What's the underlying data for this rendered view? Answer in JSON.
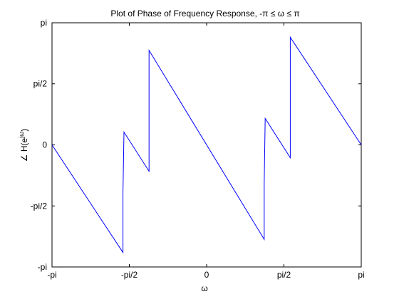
{
  "chart_data": {
    "type": "line",
    "title": "Plot of Phase of Frequency Response, -π ≤ ω ≤ π",
    "xlabel": "ω",
    "ylabel": "∠ H(e^jω)",
    "xlim": [
      -3.14159,
      3.14159
    ],
    "ylim": [
      -3.14159,
      3.14159
    ],
    "x_ticks": [
      {
        "value": -3.14159,
        "label": "-pi"
      },
      {
        "value": -1.5708,
        "label": "-pi/2"
      },
      {
        "value": 0,
        "label": "0"
      },
      {
        "value": 1.5708,
        "label": "pi/2"
      },
      {
        "value": 3.14159,
        "label": "pi"
      }
    ],
    "y_ticks": [
      {
        "value": -3.14159,
        "label": "-pi"
      },
      {
        "value": -1.5708,
        "label": "-pi/2"
      },
      {
        "value": 0,
        "label": "0"
      },
      {
        "value": 1.5708,
        "label": "pi/2"
      },
      {
        "value": 3.14159,
        "label": "pi"
      }
    ],
    "grid": false,
    "line_color": "#0000ff",
    "series": [
      {
        "x": [
          -3.14159,
          -1.7,
          -1.7,
          -1.68,
          -1.17,
          -1.17,
          1.17,
          1.17,
          1.19,
          1.7,
          1.7,
          3.14159
        ],
        "y": [
          0,
          -2.77,
          -1.2,
          0.33,
          -0.68,
          2.43,
          -2.43,
          -1.0,
          0.68,
          -0.33,
          2.77,
          0
        ]
      }
    ]
  }
}
